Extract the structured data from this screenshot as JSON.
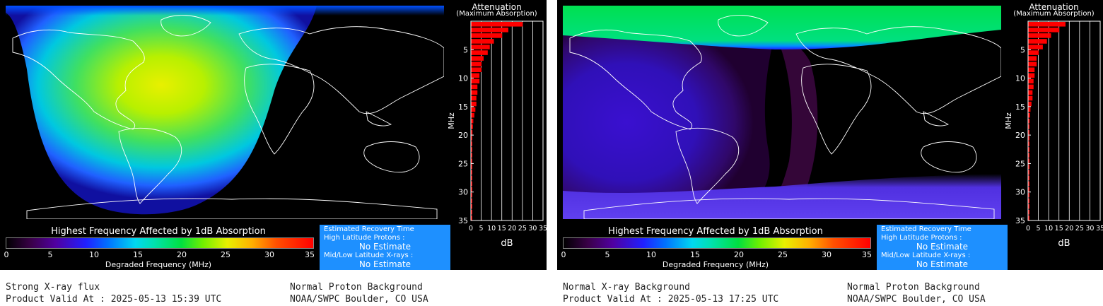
{
  "panels": [
    {
      "legend": {
        "title": "Highest Frequency Affected by 1dB Absorption",
        "ticks": [
          "0",
          "5",
          "10",
          "15",
          "20",
          "25",
          "30",
          "35"
        ],
        "xlabel": "Degraded Frequency (MHz)"
      },
      "recovery": {
        "title": "Estimated Recovery Time",
        "protons_label": "High Latitude Protons :",
        "protons_value": "No Estimate",
        "xrays_label": "Mid/Low Latitude X-rays :",
        "xrays_value": "No Estimate"
      },
      "caption": {
        "left_line1": "Strong X-ray flux",
        "left_line2": "Product Valid At : 2025-05-13 15:39 UTC",
        "right_line1": "Normal Proton Background",
        "right_line2": "NOAA/SWPC Boulder, CO USA"
      },
      "colors": {
        "primary": "#e8f000",
        "secondary": "#00e040",
        "edge": "#2020ff"
      },
      "chart_data": {
        "type": "bar",
        "title": "Attenuation",
        "subtitle": "(Maximum Absorption)",
        "xlabel": "dB",
        "ylabel": "MHz",
        "xlim": [
          0,
          35
        ],
        "ylim": [
          35,
          0
        ],
        "xticks": [
          "0",
          "5",
          "10",
          "15",
          "20",
          "25",
          "30",
          "35"
        ],
        "yticks": [
          "5",
          "10",
          "15",
          "20",
          "25",
          "30",
          "35"
        ],
        "frequencies": [
          1,
          2,
          3,
          4,
          5,
          6,
          7,
          8,
          9,
          10,
          11,
          12,
          13,
          14,
          15,
          16,
          17,
          18,
          19,
          20,
          21,
          22,
          23,
          24,
          25,
          26,
          27,
          28,
          29,
          30,
          31,
          32,
          33,
          34,
          35
        ],
        "values": [
          25,
          18,
          15,
          11,
          9,
          8,
          6,
          5,
          5,
          4,
          4,
          3,
          3,
          2.5,
          2.5,
          2,
          1.5,
          1,
          0.8,
          0.6,
          0.5,
          0.4,
          0.3,
          0.3,
          0.3,
          0.2,
          0.2,
          0.2,
          0.2,
          0.1,
          0.1,
          0.1,
          0.1,
          0.1,
          0.1
        ]
      }
    },
    {
      "legend": {
        "title": "Highest Frequency Affected by 1dB Absorption",
        "ticks": [
          "0",
          "5",
          "10",
          "15",
          "20",
          "25",
          "30",
          "35"
        ],
        "xlabel": "Degraded Frequency (MHz)"
      },
      "recovery": {
        "title": "Estimated Recovery Time",
        "protons_label": "High Latitude Protons :",
        "protons_value": "No Estimate",
        "xrays_label": "Mid/Low Latitude X-rays :",
        "xrays_value": "No Estimate"
      },
      "caption": {
        "left_line1": "Normal X-ray Background",
        "left_line2": "Product Valid At : 2025-05-13 17:25 UTC",
        "right_line1": "Normal Proton Background",
        "right_line2": "NOAA/SWPC Boulder, CO USA"
      },
      "colors": {
        "polar": "#00e040",
        "day": "#3a10c8",
        "edge": "#2020ff"
      },
      "chart_data": {
        "type": "bar",
        "title": "Attenuation",
        "subtitle": "(Maximum Absorption)",
        "xlabel": "dB",
        "ylabel": "MHz",
        "xlim": [
          0,
          35
        ],
        "ylim": [
          35,
          0
        ],
        "xticks": [
          "0",
          "5",
          "10",
          "15",
          "20",
          "25",
          "30",
          "35"
        ],
        "yticks": [
          "5",
          "10",
          "15",
          "20",
          "25",
          "30",
          "35"
        ],
        "frequencies": [
          1,
          2,
          3,
          4,
          5,
          6,
          7,
          8,
          9,
          10,
          11,
          12,
          13,
          14,
          15,
          16,
          17,
          18,
          19,
          20,
          21,
          22,
          23,
          24,
          25,
          26,
          27,
          28,
          29,
          30,
          31,
          32,
          33,
          34,
          35
        ],
        "values": [
          18,
          15,
          11,
          9,
          7,
          5,
          4,
          4,
          3,
          3,
          2.5,
          2.5,
          2,
          2,
          1.5,
          1,
          0.8,
          0.6,
          0.5,
          0.4,
          0.3,
          0.3,
          0.3,
          0.2,
          0.2,
          0.2,
          0.2,
          0.2,
          0.1,
          0.1,
          0.1,
          0.1,
          0.1,
          0.1,
          0.1
        ]
      }
    }
  ]
}
